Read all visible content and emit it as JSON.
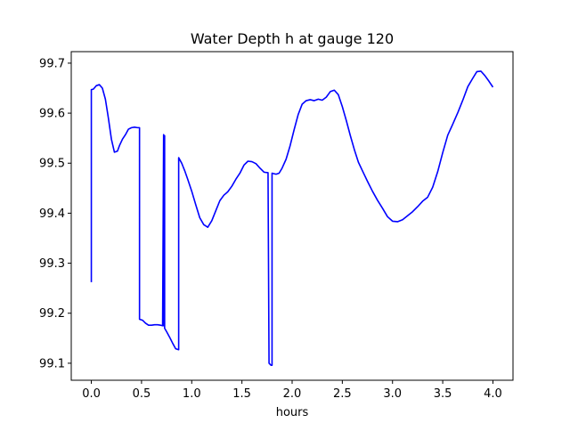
{
  "chart_data": {
    "type": "line",
    "title": "Water Depth h at gauge 120",
    "xlabel": "hours",
    "ylabel": "",
    "xlim": [
      -0.2,
      4.2
    ],
    "ylim": [
      99.066,
      99.723
    ],
    "grid": false,
    "xticks": [
      0.0,
      0.5,
      1.0,
      1.5,
      2.0,
      2.5,
      3.0,
      3.5,
      4.0
    ],
    "xtick_labels": [
      "0.0",
      "0.5",
      "1.0",
      "1.5",
      "2.0",
      "2.5",
      "3.0",
      "3.5",
      "4.0"
    ],
    "yticks": [
      99.1,
      99.2,
      99.3,
      99.4,
      99.5,
      99.6,
      99.7
    ],
    "ytick_labels": [
      "99.1",
      "99.2",
      "99.3",
      "99.4",
      "99.5",
      "99.6",
      "99.7"
    ],
    "colors": {
      "line": "#0000ff",
      "axes": "#000000",
      "background": "#ffffff"
    },
    "series": [
      {
        "name": "",
        "x": [
          0.0,
          0.0,
          0.02,
          0.05,
          0.08,
          0.11,
          0.14,
          0.17,
          0.2,
          0.23,
          0.26,
          0.28,
          0.31,
          0.34,
          0.37,
          0.4,
          0.43,
          0.46,
          0.48,
          0.48,
          0.51,
          0.54,
          0.57,
          0.6,
          0.63,
          0.66,
          0.69,
          0.71,
          0.72,
          0.72,
          0.73,
          0.73,
          0.75,
          0.78,
          0.81,
          0.84,
          0.87,
          0.87,
          0.9,
          0.93,
          0.96,
          1.0,
          1.04,
          1.08,
          1.12,
          1.16,
          1.2,
          1.24,
          1.28,
          1.32,
          1.36,
          1.4,
          1.44,
          1.48,
          1.52,
          1.56,
          1.6,
          1.64,
          1.68,
          1.72,
          1.76,
          1.77,
          1.77,
          1.79,
          1.8,
          1.8,
          1.84,
          1.87,
          1.9,
          1.94,
          1.98,
          2.02,
          2.06,
          2.1,
          2.14,
          2.18,
          2.22,
          2.26,
          2.3,
          2.34,
          2.38,
          2.42,
          2.46,
          2.5,
          2.54,
          2.58,
          2.62,
          2.66,
          2.7,
          2.75,
          2.8,
          2.85,
          2.9,
          2.95,
          3.0,
          3.05,
          3.1,
          3.15,
          3.2,
          3.25,
          3.3,
          3.35,
          3.4,
          3.45,
          3.5,
          3.55,
          3.6,
          3.65,
          3.7,
          3.75,
          3.8,
          3.84,
          3.88,
          3.92,
          3.96,
          4.0
        ],
        "y": [
          99.262,
          99.647,
          99.648,
          99.655,
          99.657,
          99.65,
          99.628,
          99.59,
          99.548,
          99.522,
          99.524,
          99.535,
          99.548,
          99.557,
          99.568,
          99.571,
          99.572,
          99.571,
          99.571,
          99.188,
          99.186,
          99.18,
          99.176,
          99.176,
          99.177,
          99.177,
          99.176,
          99.175,
          99.557,
          99.175,
          99.555,
          99.17,
          99.163,
          99.152,
          99.14,
          99.129,
          99.127,
          99.511,
          99.5,
          99.485,
          99.468,
          99.444,
          99.417,
          99.391,
          99.377,
          99.372,
          99.385,
          99.405,
          99.425,
          99.436,
          99.443,
          99.454,
          99.468,
          99.48,
          99.496,
          99.504,
          99.503,
          99.499,
          99.49,
          99.482,
          99.481,
          99.1,
          99.1,
          99.096,
          99.096,
          99.48,
          99.478,
          99.48,
          99.49,
          99.508,
          99.535,
          99.567,
          99.597,
          99.618,
          99.625,
          99.627,
          99.625,
          99.628,
          99.626,
          99.632,
          99.643,
          99.646,
          99.637,
          99.613,
          99.585,
          99.555,
          99.527,
          99.502,
          99.485,
          99.464,
          99.444,
          99.426,
          99.41,
          99.393,
          99.384,
          99.383,
          99.387,
          99.395,
          99.403,
          99.413,
          99.424,
          99.432,
          99.452,
          99.483,
          99.521,
          99.556,
          99.578,
          99.601,
          99.626,
          99.653,
          99.67,
          99.683,
          99.684,
          99.675,
          99.664,
          99.652
        ]
      }
    ]
  }
}
